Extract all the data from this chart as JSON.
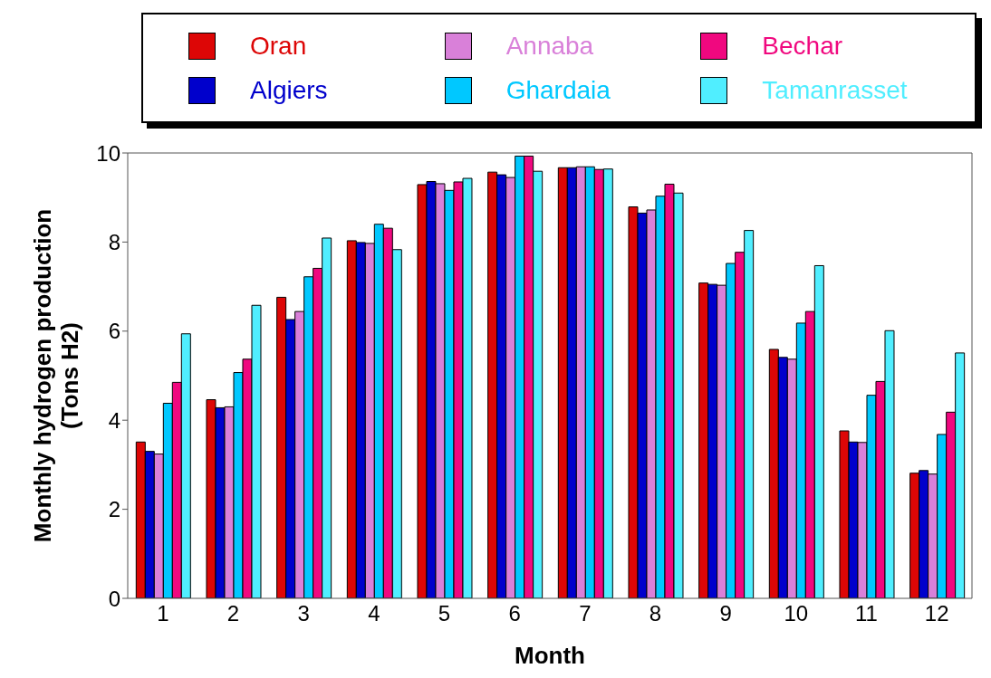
{
  "chart_data": {
    "type": "bar",
    "xlabel": "Month",
    "ylabel": "Monthly hydrogen production\n(Tons H2)",
    "categories": [
      "1",
      "2",
      "3",
      "4",
      "5",
      "6",
      "7",
      "8",
      "9",
      "10",
      "11",
      "12"
    ],
    "series": [
      {
        "name": "Oran",
        "color": "#dd0606",
        "values": [
          3.51,
          4.46,
          6.76,
          8.03,
          9.29,
          9.57,
          9.67,
          8.79,
          7.08,
          5.59,
          3.76,
          2.81
        ]
      },
      {
        "name": "Algiers",
        "color": "#0000cc",
        "values": [
          3.3,
          4.28,
          6.26,
          7.99,
          9.36,
          9.51,
          9.67,
          8.65,
          7.05,
          5.41,
          3.51,
          2.87
        ]
      },
      {
        "name": "Annaba",
        "color": "#d980d9",
        "values": [
          3.24,
          4.3,
          6.44,
          7.97,
          9.31,
          9.45,
          9.69,
          8.72,
          7.03,
          5.37,
          3.5,
          2.79
        ]
      },
      {
        "name": "Ghardaia",
        "color": "#00c8ff",
        "values": [
          4.38,
          5.07,
          7.22,
          8.4,
          9.16,
          9.93,
          9.69,
          9.03,
          7.52,
          6.18,
          4.56,
          3.68
        ]
      },
      {
        "name": "Bechar",
        "color": "#f0087f",
        "values": [
          4.85,
          5.37,
          7.41,
          8.31,
          9.35,
          9.93,
          9.63,
          9.3,
          7.77,
          6.44,
          4.87,
          4.18
        ]
      },
      {
        "name": "Tamanrasset",
        "color": "#50eeff",
        "values": [
          5.94,
          6.58,
          8.09,
          7.83,
          9.43,
          9.59,
          9.64,
          9.1,
          8.26,
          7.47,
          6.01,
          5.51
        ]
      }
    ],
    "ylim": [
      0,
      10
    ],
    "yticks": [
      0,
      2,
      4,
      6,
      8,
      10
    ],
    "grid": false,
    "legend": "top"
  }
}
